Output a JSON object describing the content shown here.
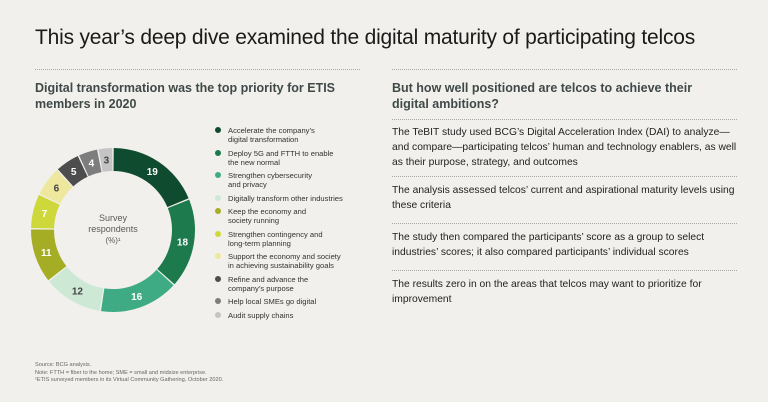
{
  "title": "This year’s deep dive examined the digital maturity of participating telcos",
  "left": {
    "heading": "Digital transformation was the top priority for ETIS members in 2020"
  },
  "right": {
    "heading": "But how well positioned are telcos to achieve their digital ambitions?",
    "paragraphs": [
      "The TeBIT study used BCG’s Digital Acceleration Index (DAI) to analyze—and compare—participating telcos’ human and technology enablers, as well as their purpose, strategy, and outcomes",
      "The analysis assessed telcos’ current and aspirational maturity levels using these criteria",
      "The study then compared the participants’ score as a group to select industries’ scores; it also compared participants’ individual scores",
      "The results zero in on the areas that telcos may want to prioritize for improvement"
    ]
  },
  "chart_data": {
    "type": "pie",
    "center_label_lines": [
      "Survey",
      "respondents",
      "(%)¹"
    ],
    "categories": [
      "Accelerate the company’s digital transformation",
      "Deploy 5G and FTTH to enable the new normal",
      "Strengthen cybersecurity and privacy",
      "Digitally transform other industries",
      "Keep the economy and society running",
      "Strengthen contingency and long-term planning",
      "Support the economy and society in achieving sustainability goals",
      "Refine and advance the company’s purpose",
      "Help local SMEs go digital",
      "Audit supply chains"
    ],
    "legend_lines": [
      [
        "Accelerate the company’s",
        "digital transformation"
      ],
      [
        "Deploy 5G and FTTH to enable",
        "the new normal"
      ],
      [
        "Strengthen cybersecurity",
        "and privacy"
      ],
      [
        "Digitally transform other industries"
      ],
      [
        "Keep the economy and",
        "society running"
      ],
      [
        "Strengthen contingency and",
        "long-term planning"
      ],
      [
        "Support the economy and society",
        "in achieving sustainability goals"
      ],
      [
        "Refine and advance the",
        "company’s purpose"
      ],
      [
        "Help local SMEs go digital"
      ],
      [
        "Audit supply chains"
      ]
    ],
    "values": [
      19,
      18,
      16,
      12,
      11,
      7,
      6,
      5,
      4,
      3
    ],
    "colors": [
      "#0f4c2f",
      "#1c7a4d",
      "#3eab84",
      "#cde9d6",
      "#a5ad24",
      "#cfd83a",
      "#ede89e",
      "#4d4d4d",
      "#7d7d7d",
      "#c4c4c4"
    ],
    "label_colors": [
      "#ffffff",
      "#ffffff",
      "#ffffff",
      "#444444",
      "#ffffff",
      "#ffffff",
      "#444444",
      "#ffffff",
      "#ffffff",
      "#444444"
    ]
  },
  "footnotes": [
    "Source: BCG analysis.",
    "Note: FTTH = fiber to the home; SME = small and midsize enterprise.",
    "¹ETIS surveyed members in its Virtual Community Gathering, October 2020."
  ]
}
